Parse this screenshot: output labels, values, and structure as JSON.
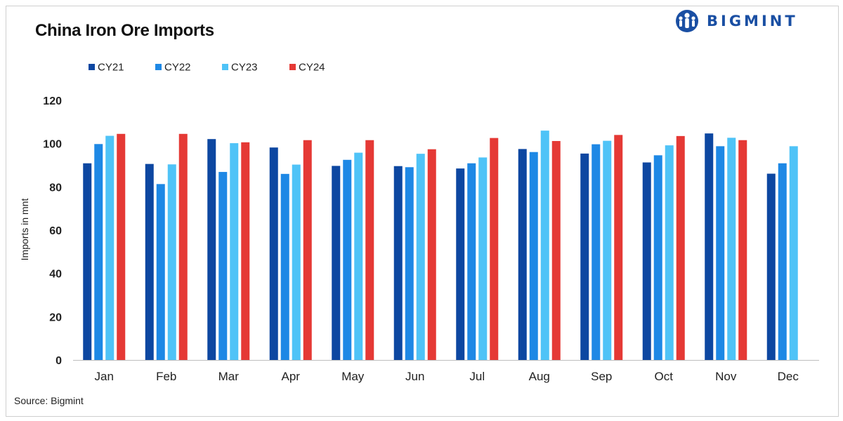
{
  "header": {
    "title": "China Iron Ore Imports",
    "logo_text": "BIGMINT"
  },
  "footer": {
    "source": "Source: Bigmint"
  },
  "colors": {
    "CY21": "#0d47a1",
    "CY22": "#1e88e5",
    "CY23": "#4fc3f7",
    "CY24": "#e53935",
    "logo": "#1a4fa3"
  },
  "chart_data": {
    "type": "bar",
    "title": "China Iron Ore Imports",
    "xlabel": "",
    "ylabel": "Imports in mnt",
    "ylim": [
      0,
      120
    ],
    "yticks": [
      "0",
      "20",
      "40",
      "60",
      "80",
      "100",
      "120"
    ],
    "grid": false,
    "legend_position": "top-left",
    "categories": [
      "Jan",
      "Feb",
      "Mar",
      "Apr",
      "May",
      "Jun",
      "Jul",
      "Aug",
      "Sep",
      "Oct",
      "Nov",
      "Dec"
    ],
    "series": [
      {
        "name": "CY21",
        "values": [
          90.9,
          90.6,
          102.1,
          98.2,
          89.7,
          89.6,
          88.5,
          97.5,
          95.4,
          91.3,
          104.7,
          86.1
        ]
      },
      {
        "name": "CY22",
        "values": [
          99.8,
          81.3,
          86.9,
          86.0,
          92.5,
          89.1,
          90.9,
          96.1,
          99.7,
          94.6,
          98.8,
          90.9
        ]
      },
      {
        "name": "CY23",
        "values": [
          103.6,
          90.4,
          100.2,
          90.3,
          95.8,
          95.3,
          93.6,
          106.0,
          101.3,
          99.2,
          102.7,
          98.8
        ]
      },
      {
        "name": "CY24",
        "values": [
          104.5,
          104.5,
          100.6,
          101.6,
          101.6,
          97.4,
          102.6,
          101.2,
          104.0,
          103.5,
          101.6,
          null
        ]
      }
    ]
  }
}
